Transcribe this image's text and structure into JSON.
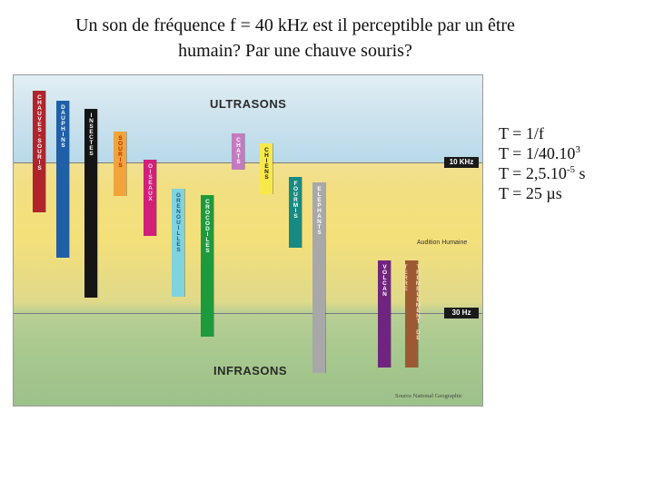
{
  "title": {
    "line1": "Un son de fréquence f = 40 kHz est il perceptible par un être",
    "line2": "humain? Par une chauve souris?"
  },
  "figure": {
    "ultrasons": "ULTRASONS",
    "infrasons": "INFRASONS",
    "tag_high": "10 KHz",
    "tag_low": "30 Hz",
    "audition": "Audition Humaine",
    "source": "Source National Geographic",
    "bars": [
      {
        "name": "bar-chauves-souris",
        "label": "CHAUVES-SOURIS",
        "color": "#b0252c",
        "text": "#ffffff"
      },
      {
        "name": "bar-dauphins",
        "label": "DAUPHINS",
        "color": "#1f5fa8",
        "text": "#ffffff"
      },
      {
        "name": "bar-insectes",
        "label": "INSECTES",
        "color": "#151515",
        "text": "#ffffff"
      },
      {
        "name": "bar-souris",
        "label": "SOURIS",
        "color": "#f2a33a",
        "text": "#b22a00"
      },
      {
        "name": "bar-oiseaux",
        "label": "OISEAUX",
        "color": "#d21f7a",
        "text": "#ffd8ec"
      },
      {
        "name": "bar-grenouilles",
        "label": "GRENOUILLES",
        "color": "#7fd3de",
        "text": "#1c5c8a"
      },
      {
        "name": "bar-crocodiles",
        "label": "CROCODILES",
        "color": "#1d9a3c",
        "text": "#ffffff"
      },
      {
        "name": "bar-chats",
        "label": "CHATS",
        "color": "#c47ac0",
        "text": "#ffffff"
      },
      {
        "name": "bar-chiens",
        "label": "CHIENS",
        "color": "#f8e94a",
        "text": "#1a1a1a"
      },
      {
        "name": "bar-fourmis",
        "label": "FOURMIS",
        "color": "#178a83",
        "text": "#ffffff"
      },
      {
        "name": "bar-elephants",
        "label": "ELEPHANTS",
        "color": "#a8a8a8",
        "text": "#ffffff"
      },
      {
        "name": "bar-volcan",
        "label": "VOLCAN",
        "color": "#6f2580",
        "text": "#ffffff"
      },
      {
        "name": "bar-tremblement-de-terre",
        "label": "TREMBLEMENT DE TERRE",
        "color": "#9d5a32",
        "text": "#ffd6b5"
      }
    ]
  },
  "formulas": {
    "l1": "T = 1/f",
    "l2a": "T = 1/40.10",
    "l2sup": "3",
    "l3a": "T = 2,5.10",
    "l3sup": "-5",
    "l3b": " s",
    "l4": "T = 25 µs"
  }
}
